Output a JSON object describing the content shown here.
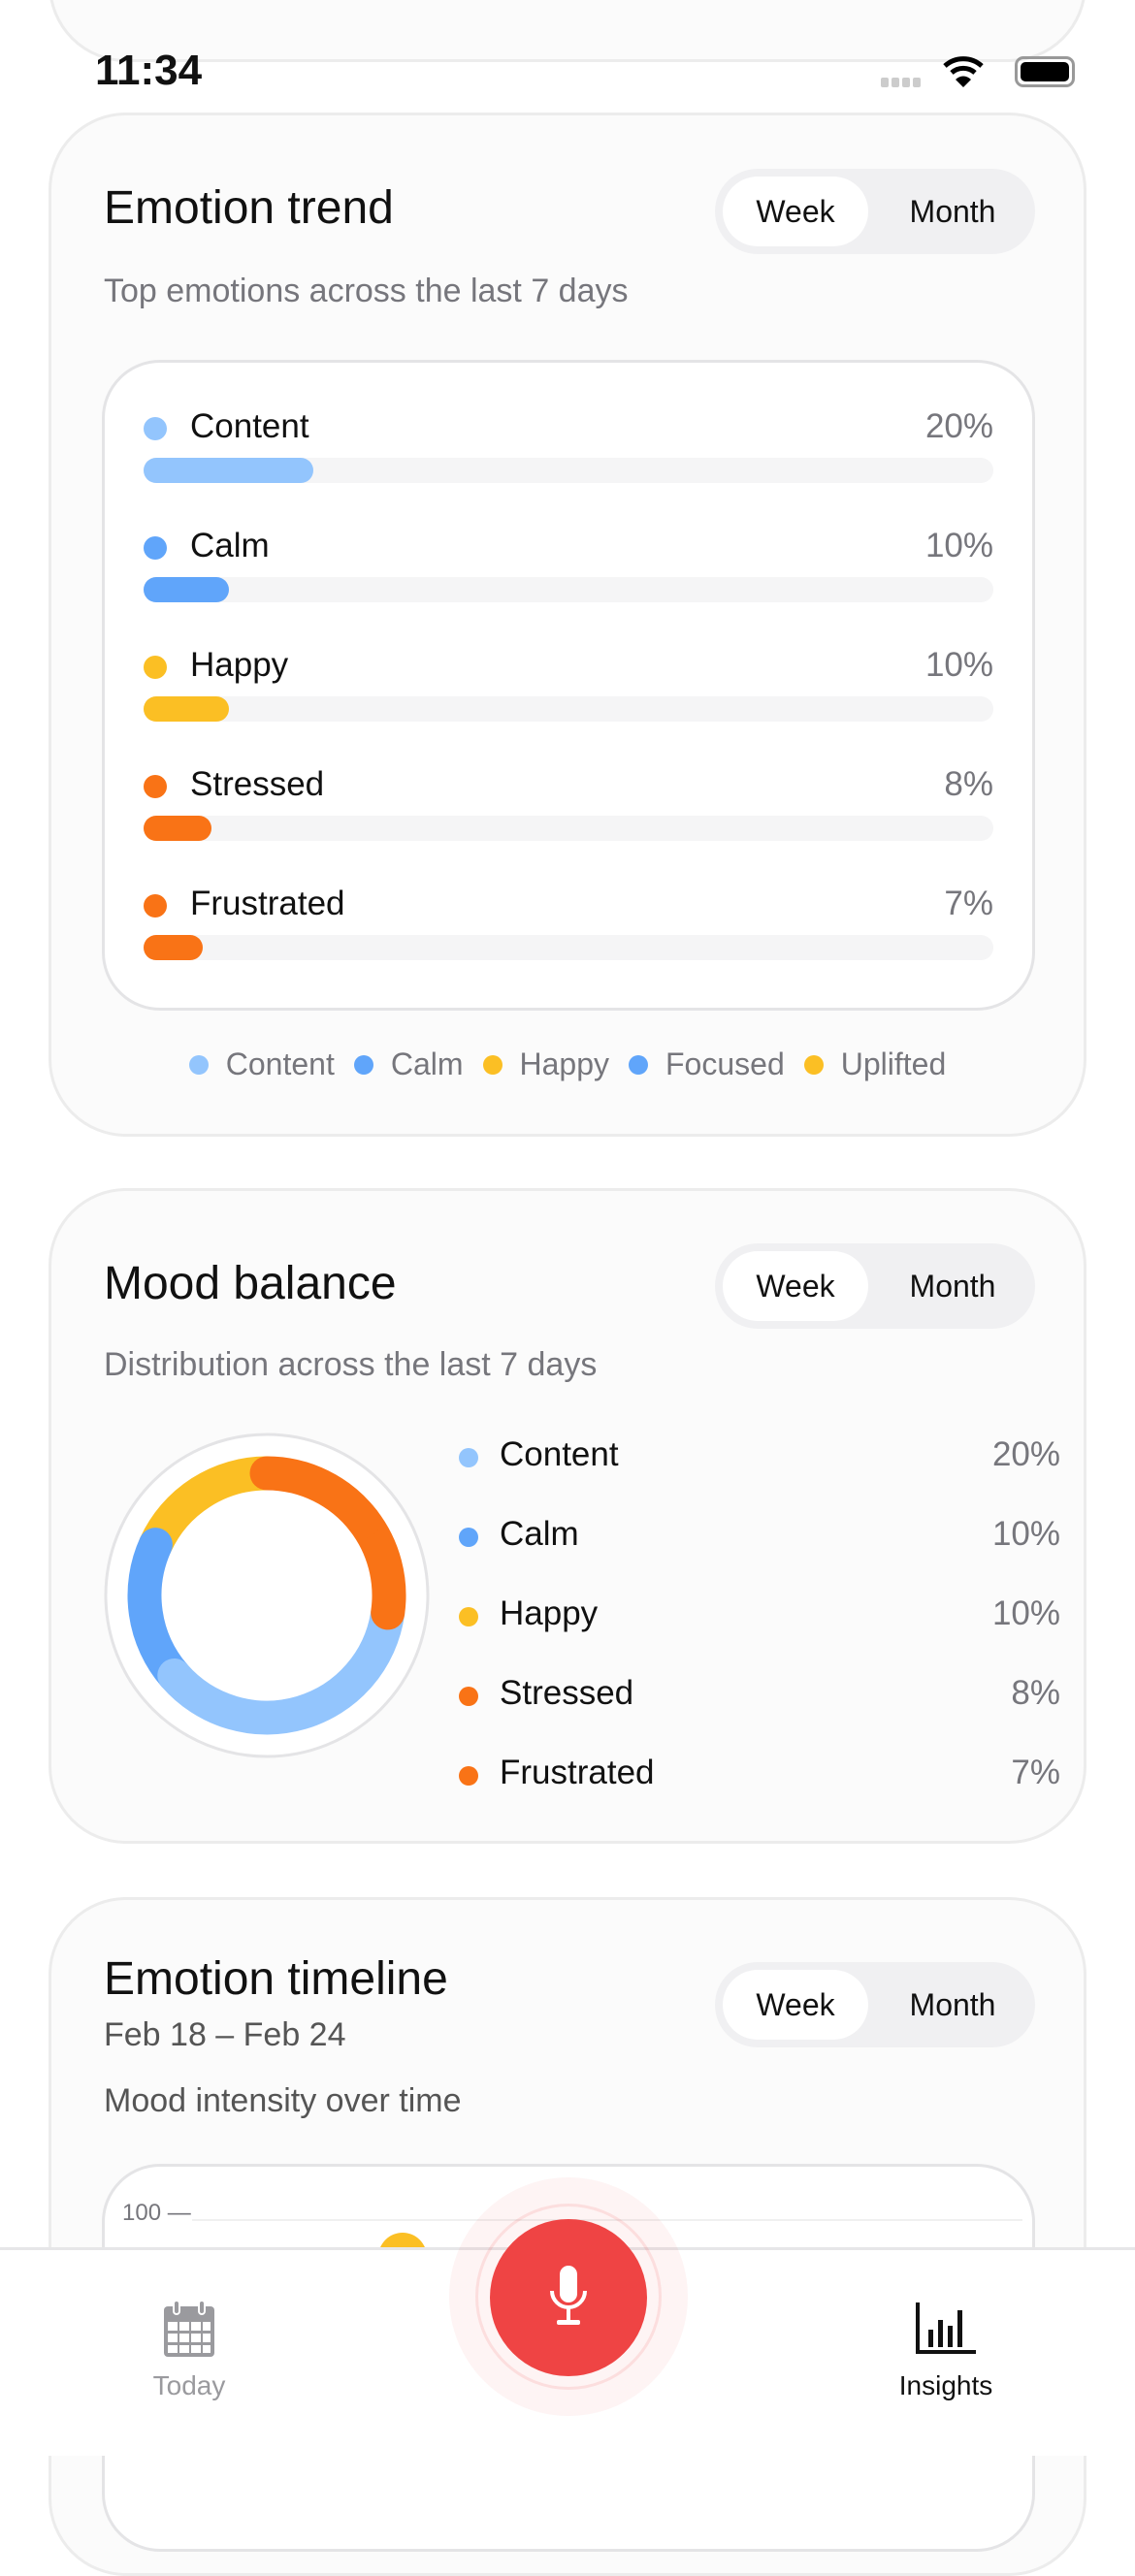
{
  "status_bar": {
    "time": "11:34"
  },
  "colors": {
    "content": "#93C5FD",
    "calm": "#60A5FA",
    "happy": "#FBBF24",
    "stressed": "#F97316",
    "frustrated": "#F97316",
    "focused": "#60A5FA",
    "uplifted": "#FBBF24",
    "record": "#EF4444"
  },
  "emotion_trend": {
    "title": "Emotion trend",
    "subtitle": "Top emotions across the last 7 days",
    "toggle": {
      "week": "Week",
      "month": "Month",
      "selected": "Week"
    },
    "rows": [
      {
        "label": "Content",
        "percent_label": "20%",
        "value": 20,
        "color": "#93C5FD"
      },
      {
        "label": "Calm",
        "percent_label": "10%",
        "value": 10,
        "color": "#60A5FA"
      },
      {
        "label": "Happy",
        "percent_label": "10%",
        "value": 10,
        "color": "#FBBF24"
      },
      {
        "label": "Stressed",
        "percent_label": "8%",
        "value": 8,
        "color": "#F97316"
      },
      {
        "label": "Frustrated",
        "percent_label": "7%",
        "value": 7,
        "color": "#F97316"
      }
    ],
    "legend": [
      {
        "label": "Content",
        "color": "#93C5FD"
      },
      {
        "label": "Calm",
        "color": "#60A5FA"
      },
      {
        "label": "Happy",
        "color": "#FBBF24"
      },
      {
        "label": "Focused",
        "color": "#60A5FA"
      },
      {
        "label": "Uplifted",
        "color": "#FBBF24"
      }
    ]
  },
  "mood_balance": {
    "title": "Mood balance",
    "subtitle": "Distribution across the last 7 days",
    "toggle": {
      "week": "Week",
      "month": "Month",
      "selected": "Week"
    },
    "items": [
      {
        "label": "Content",
        "percent_label": "20%",
        "value": 20,
        "color": "#93C5FD"
      },
      {
        "label": "Calm",
        "percent_label": "10%",
        "value": 10,
        "color": "#60A5FA"
      },
      {
        "label": "Happy",
        "percent_label": "10%",
        "value": 10,
        "color": "#FBBF24"
      },
      {
        "label": "Stressed",
        "percent_label": "8%",
        "value": 8,
        "color": "#F97316"
      },
      {
        "label": "Frustrated",
        "percent_label": "7%",
        "value": 7,
        "color": "#F97316"
      }
    ]
  },
  "emotion_timeline": {
    "title": "Emotion timeline",
    "date_range": "Feb 18 – Feb 24",
    "subtitle": "Mood intensity over time",
    "toggle": {
      "week": "Week",
      "month": "Month",
      "selected": "Week"
    },
    "y_tick_top": "100 —"
  },
  "nav": {
    "today": "Today",
    "insights": "Insights",
    "active": "Insights"
  }
}
